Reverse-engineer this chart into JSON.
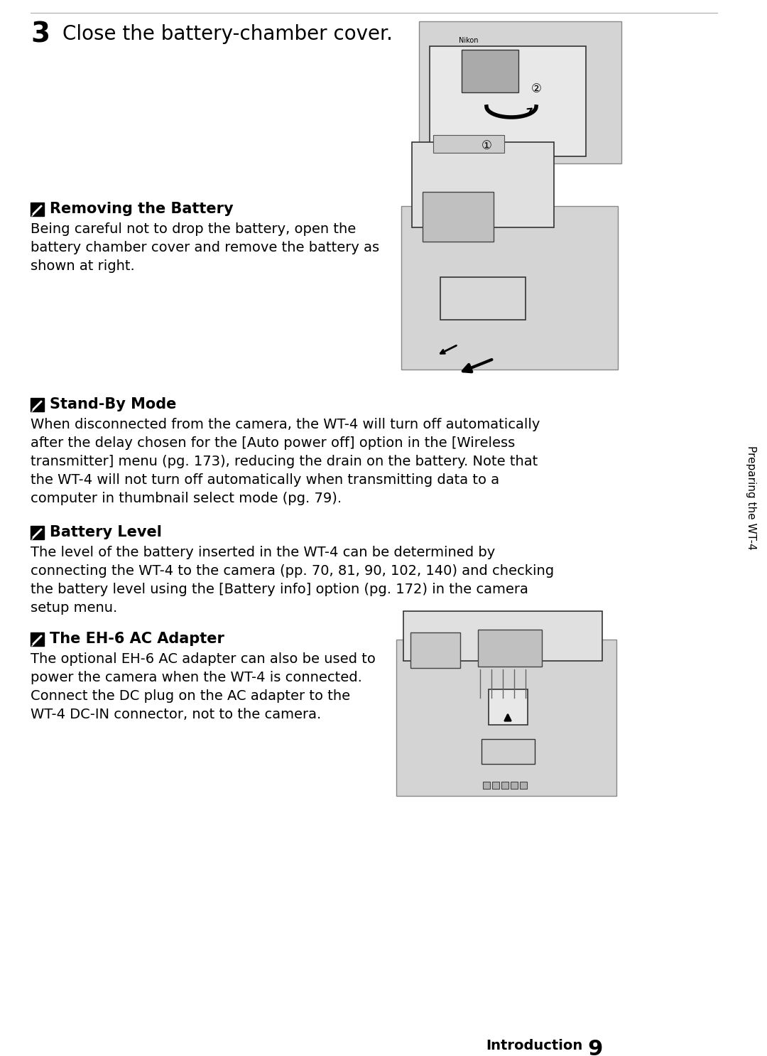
{
  "page_bg": "#ffffff",
  "text_color": "#000000",
  "line_color": "#aaaaaa",
  "gray_box": "#cccccc",
  "step3_num": "3",
  "step3_text": "Close the battery-chamber cover.",
  "sidebar_text": "Preparing the WT-4",
  "s1_title": "Removing the Battery",
  "s1_body_lines": [
    "Being careful not to drop the battery, open the",
    "battery chamber cover and remove the battery as",
    "shown at right."
  ],
  "s2_title": "Stand-By Mode",
  "s2_body_lines": [
    "When disconnected from the camera, the WT-4 will turn off automatically",
    "after the delay chosen for the [Auto power off] option in the [Wireless",
    "transmitter] menu (pg. 173), reducing the drain on the battery. Note that",
    "the WT-4 will not turn off automatically when transmitting data to a",
    "computer in thumbnail select mode (pg. 79)."
  ],
  "s3_title": "Battery Level",
  "s3_body_lines": [
    "The level of the battery inserted in the WT-4 can be determined by",
    "connecting the WT-4 to the camera (pp. 70, 81, 90, 102, 140) and checking",
    "the battery level using the [Battery info] option (pg. 172) in the camera",
    "setup menu."
  ],
  "s4_title": "The EH-6 AC Adapter",
  "s4_body_lines": [
    "The optional EH-6 AC adapter can also be used to",
    "power the camera when the WT-4 is connected.",
    "Connect the DC plug on the AC adapter to the",
    "WT-4 DC-IN connector, not to the camera."
  ],
  "footer_label": "Introduction",
  "footer_num": "9"
}
